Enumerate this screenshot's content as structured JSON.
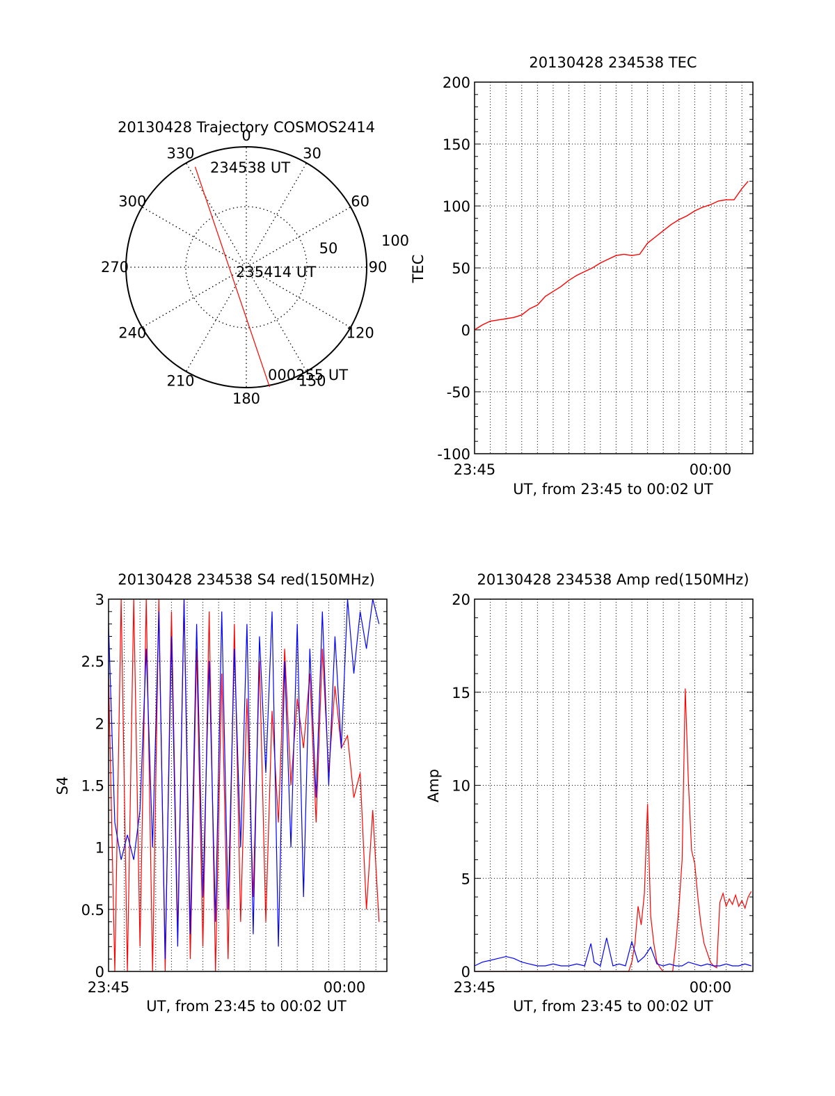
{
  "colors": {
    "red": "#ff0000",
    "blue": "#0000ff",
    "axis": "#000000",
    "grid": "#000000"
  },
  "chart_data": [
    {
      "id": "trajectory",
      "type": "polar-trajectory",
      "title": "20130428 Trajectory COSMOS2414",
      "azimuth_labels": [
        "0",
        "30",
        "60",
        "90",
        "120",
        "150",
        "180",
        "210",
        "240",
        "270",
        "300",
        "330"
      ],
      "ring_labels": [
        "50",
        "100"
      ],
      "elevation_rings": [
        50,
        100
      ],
      "trajectory": {
        "start": {
          "azimuth": 333,
          "zenith": 86,
          "label": "234538 UT"
        },
        "mid": {
          "azimuth": 180,
          "zenith": 0,
          "label": "235414 UT"
        },
        "end": {
          "azimuth": 169,
          "zenith": 93,
          "label": "000255 UT"
        }
      },
      "grid": true
    },
    {
      "id": "tec",
      "type": "line",
      "title": "20130428 234538 TEC",
      "xlabel": "UT, from 23:45 to 00:02 UT",
      "ylabel": "TEC",
      "ylim": [
        -100,
        200
      ],
      "yticks": [
        "200",
        "150",
        "100",
        "50",
        "0",
        "-50",
        "-100"
      ],
      "xticks": [
        "23:45",
        "00:00"
      ],
      "xlim_minutes": [
        0,
        17.7
      ],
      "grid": true,
      "series": [
        {
          "color": "#ff0000",
          "x": [
            0,
            0.5,
            1,
            1.5,
            2,
            2.5,
            3,
            3.5,
            4,
            4.5,
            5,
            5.5,
            6,
            6.5,
            7,
            7.5,
            8,
            8.5,
            9,
            9.5,
            10,
            10.5,
            11,
            11.5,
            12,
            12.5,
            13,
            13.5,
            14,
            14.5,
            15,
            15.5,
            16,
            16.5,
            17,
            17.2,
            17.4
          ],
          "y": [
            0,
            4,
            7,
            8,
            9,
            10,
            12,
            17,
            20,
            27,
            31,
            35,
            40,
            44,
            47,
            50,
            54,
            57,
            60,
            61,
            60,
            61,
            70,
            75,
            80,
            85,
            89,
            92,
            96,
            99,
            101,
            104,
            105,
            105,
            114,
            117,
            120
          ]
        }
      ]
    },
    {
      "id": "s4",
      "type": "line",
      "title": "20130428 234538 S4 red(150MHz)",
      "xlabel": "UT, from 23:45 to 00:02 UT",
      "ylabel": "S4",
      "ylim": [
        0,
        3
      ],
      "yticks": [
        "3",
        "2.5",
        "2",
        "1.5",
        "1",
        "0.5",
        "0"
      ],
      "xticks": [
        "23:45",
        "00:00"
      ],
      "xlim_minutes": [
        0,
        17.7
      ],
      "grid": true,
      "series": [
        {
          "color": "#ff0000",
          "x": [
            0,
            0.4,
            0.8,
            1.2,
            1.6,
            2,
            2.4,
            2.8,
            3.2,
            3.6,
            4,
            4.4,
            4.8,
            5.2,
            5.6,
            6,
            6.4,
            6.8,
            7.2,
            7.6,
            8,
            8.4,
            8.8,
            9.2,
            9.6,
            10,
            10.4,
            10.8,
            11.2,
            11.6,
            12,
            12.4,
            12.8,
            13.2,
            13.6,
            14,
            14.4,
            14.8,
            15.2,
            15.6,
            16,
            16.4,
            16.8,
            17.2
          ],
          "y": [
            2.4,
            0,
            3,
            0,
            3,
            0.2,
            3,
            0,
            3,
            0,
            2.9,
            0.3,
            3,
            0.1,
            2.6,
            0.2,
            2.9,
            0,
            2.4,
            0.1,
            2.8,
            0.4,
            2.2,
            0.6,
            2.5,
            0.4,
            2.1,
            1.2,
            2.6,
            1.5,
            2.2,
            1.8,
            2.4,
            1.2,
            2.6,
            1.6,
            2.3,
            1.8,
            1.9,
            1.4,
            1.6,
            0.5,
            1.3,
            0.4
          ]
        },
        {
          "color": "#0000ff",
          "x": [
            0,
            0.4,
            0.8,
            1.2,
            1.6,
            2,
            2.4,
            2.8,
            3.2,
            3.6,
            4,
            4.4,
            4.8,
            5.2,
            5.6,
            6,
            6.4,
            6.8,
            7.2,
            7.6,
            8,
            8.4,
            8.8,
            9.2,
            9.6,
            10,
            10.4,
            10.8,
            11.2,
            11.6,
            12,
            12.4,
            12.8,
            13.2,
            13.6,
            14,
            14.4,
            14.8,
            15.2,
            15.6,
            16,
            16.4,
            16.8,
            17.2
          ],
          "y": [
            2.8,
            1.2,
            0.9,
            1.1,
            0.9,
            1.3,
            2.6,
            1.0,
            2.9,
            0.1,
            2.7,
            0.2,
            3.0,
            0.3,
            2.8,
            0.6,
            2.5,
            0.4,
            2.9,
            0.5,
            2.6,
            1.0,
            2.8,
            0.3,
            2.7,
            1.6,
            2.9,
            0.2,
            2.5,
            1.0,
            2.8,
            0.6,
            2.6,
            1.4,
            2.9,
            1.5,
            2.7,
            1.8,
            3.0,
            2.4,
            2.9,
            2.6,
            3.0,
            2.8
          ]
        }
      ]
    },
    {
      "id": "amp",
      "type": "line",
      "title": "20130428 234538 Amp red(150MHz)",
      "xlabel": "UT, from 23:45 to 00:02 UT",
      "ylabel": "Amp",
      "ylim": [
        0,
        20
      ],
      "yticks": [
        "20",
        "15",
        "10",
        "5",
        "0"
      ],
      "xticks": [
        "23:45",
        "00:00"
      ],
      "xlim_minutes": [
        0,
        17.7
      ],
      "grid": true,
      "series": [
        {
          "color": "#ff0000",
          "x": [
            0,
            9.8,
            10.0,
            10.2,
            10.4,
            10.6,
            10.8,
            11.0,
            11.2,
            11.4,
            11.6,
            11.8,
            12.0,
            12.6,
            12.8,
            13.0,
            13.2,
            13.4,
            13.6,
            13.8,
            14.0,
            14.2,
            14.4,
            14.6,
            14.8,
            15.0,
            15.2,
            15.4,
            15.6,
            15.8,
            16.0,
            16.2,
            16.4,
            16.6,
            16.8,
            17.0,
            17.2,
            17.4,
            17.6
          ],
          "y": [
            0,
            0,
            0.5,
            1.5,
            3.5,
            2.5,
            4.2,
            9.0,
            3.0,
            1.5,
            0.5,
            0.2,
            0,
            0,
            1.5,
            3.5,
            6.0,
            15.2,
            10.2,
            6.5,
            5.8,
            4.0,
            2.5,
            1.5,
            1.0,
            0.5,
            0.3,
            0.2,
            3.7,
            4.2,
            3.5,
            3.9,
            3.6,
            4.1,
            3.5,
            3.8,
            3.4,
            4.0,
            4.3
          ]
        },
        {
          "color": "#0000ff",
          "x": [
            0,
            0.5,
            1.0,
            1.5,
            2.0,
            2.5,
            3.0,
            3.5,
            4.0,
            4.5,
            5.0,
            5.5,
            6.0,
            6.5,
            7.0,
            7.4,
            7.6,
            7.8,
            8.0,
            8.4,
            8.8,
            9.2,
            9.6,
            10.0,
            10.4,
            10.8,
            11.2,
            11.6,
            12.0,
            12.4,
            12.8,
            13.2,
            13.6,
            14.0,
            14.4,
            14.8,
            15.2,
            15.6,
            16.0,
            16.4,
            16.8,
            17.2,
            17.6
          ],
          "y": [
            0.3,
            0.5,
            0.6,
            0.7,
            0.8,
            0.7,
            0.5,
            0.4,
            0.3,
            0.3,
            0.4,
            0.3,
            0.3,
            0.4,
            0.3,
            1.5,
            0.5,
            0.4,
            0.3,
            1.8,
            0.3,
            0.4,
            0.3,
            1.6,
            0.5,
            0.8,
            1.3,
            0.4,
            0.3,
            0.4,
            0.3,
            0.3,
            0.5,
            0.4,
            0.3,
            0.4,
            0.3,
            0.3,
            0.4,
            0.3,
            0.3,
            0.4,
            0.3
          ]
        }
      ]
    }
  ]
}
